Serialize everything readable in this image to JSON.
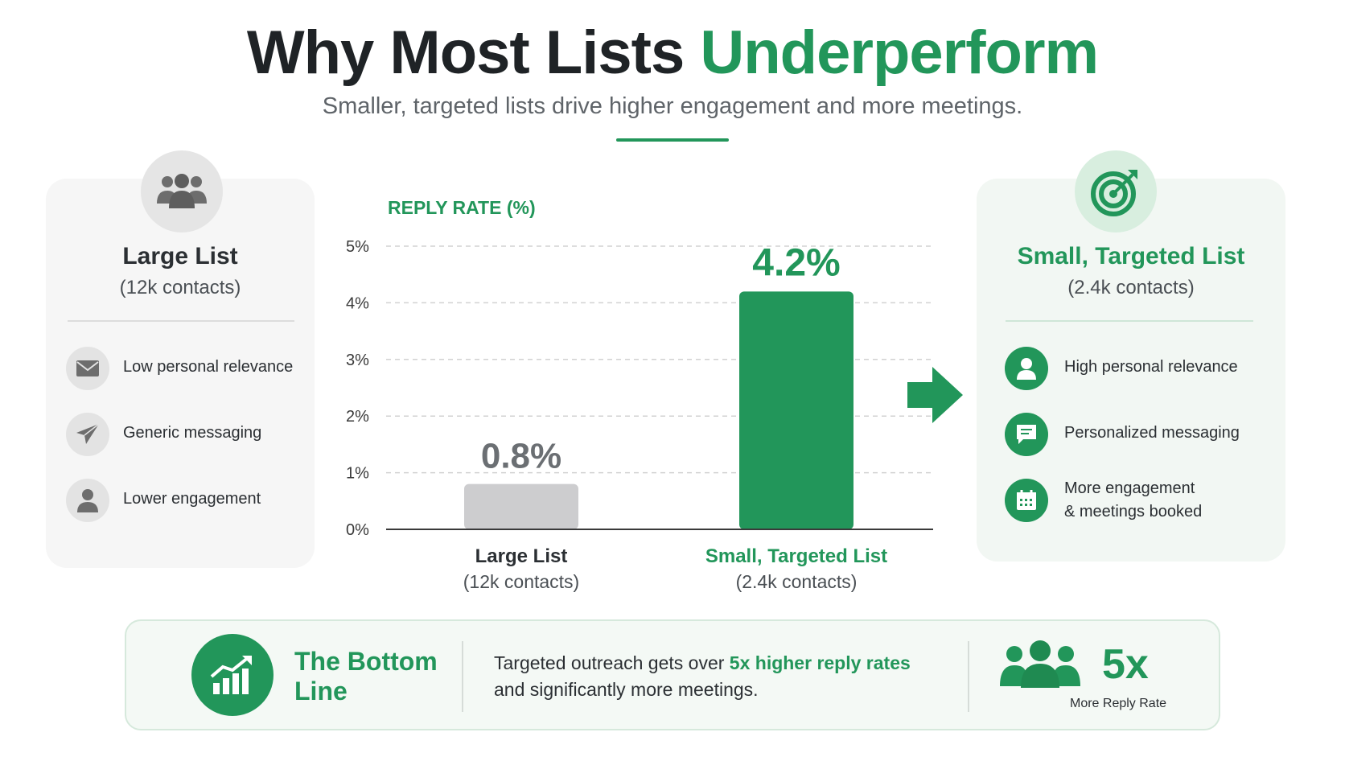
{
  "header": {
    "title_dark": "Why Most Lists",
    "title_accent": "Underperform",
    "subtitle": "Smaller, targeted lists drive higher engagement and more meetings."
  },
  "left_panel": {
    "icon": "people-group-icon",
    "title": "Large List",
    "subtitle": "(12k contacts)",
    "items": [
      {
        "icon": "envelope-icon",
        "label": "Low personal relevance"
      },
      {
        "icon": "paper-plane-icon",
        "label": "Generic messaging"
      },
      {
        "icon": "person-icon",
        "label": "Lower engagement"
      }
    ]
  },
  "right_panel": {
    "icon": "target-icon",
    "title": "Small, Targeted List",
    "subtitle": "(2.4k contacts)",
    "items": [
      {
        "icon": "person-icon",
        "label": "High personal relevance"
      },
      {
        "icon": "chat-bubble-icon",
        "label": "Personalized messaging"
      },
      {
        "icon": "calendar-icon",
        "label_line1": "More engagement",
        "label_line2": "& meetings booked"
      }
    ]
  },
  "chart_data": {
    "type": "bar",
    "title": "REPLY RATE (%)",
    "categories": [
      "Large List",
      "Small, Targeted List"
    ],
    "category_subtitles": [
      "(12k contacts)",
      "(2.4k contacts)"
    ],
    "values": [
      0.8,
      4.2
    ],
    "value_labels": [
      "0.8%",
      "4.2%"
    ],
    "ylim": [
      0,
      5
    ],
    "yticks": [
      "0%",
      "1%",
      "2%",
      "3%",
      "4%",
      "5%"
    ],
    "grid": true,
    "bar_colors": [
      "#cdcdcf",
      "#22965a"
    ],
    "label_colors": [
      "#6b6f73",
      "#22965a"
    ]
  },
  "bottom_line": {
    "icon": "trend-up-chart-icon",
    "title": "The Bottom Line",
    "text_before": "Targeted outreach gets over ",
    "text_highlight": "5x higher reply rates",
    "text_after": "and significantly more meetings.",
    "stat_icon": "people-group-icon",
    "stat_value": "5x",
    "stat_label": "More Reply Rate"
  },
  "colors": {
    "accent": "#22965a",
    "dark_text": "#1f2326",
    "muted_text": "#5f6469"
  }
}
